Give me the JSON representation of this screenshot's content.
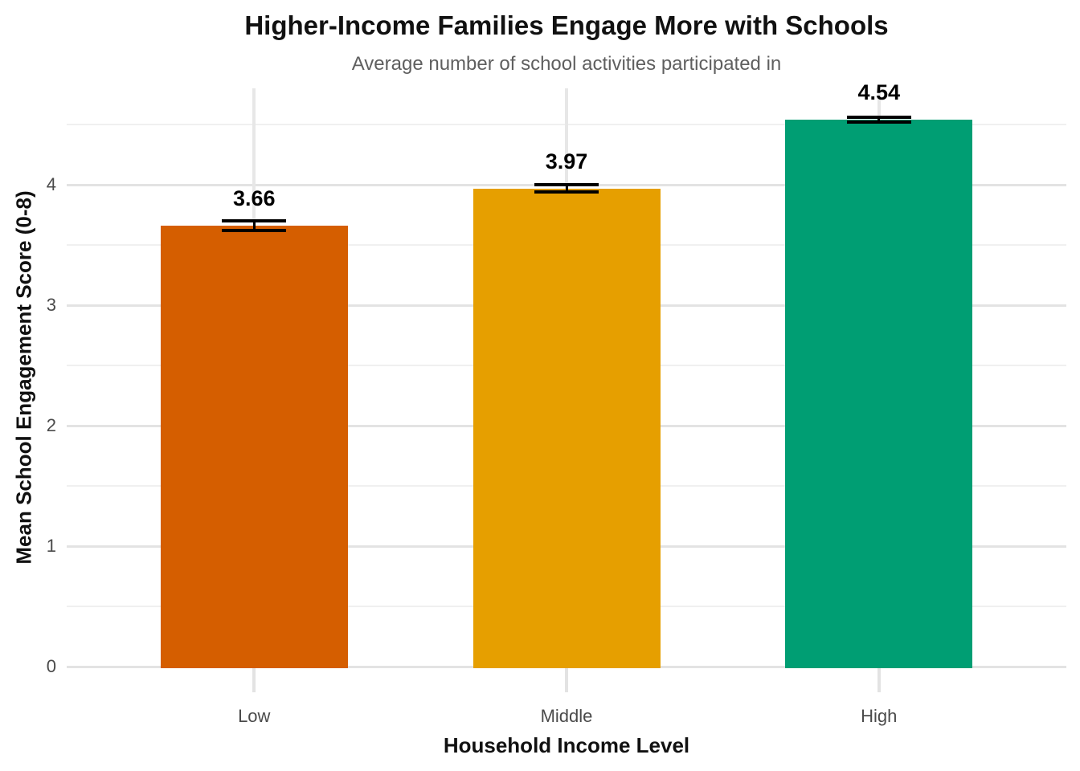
{
  "figure": {
    "title": "Higher-Income Families Engage More with Schools",
    "subtitle": "Average number of school activities participated in"
  },
  "chart_data": {
    "type": "bar",
    "title": "Higher-Income Families Engage More with Schools",
    "subtitle": "Average number of school activities participated in",
    "xlabel": "Household Income Level",
    "ylabel": "Mean School Engagement Score (0-8)",
    "categories": [
      "Low",
      "Middle",
      "High"
    ],
    "values": [
      3.66,
      3.97,
      4.54
    ],
    "value_labels": [
      "3.66",
      "3.97",
      "4.54"
    ],
    "errors": [
      0.04,
      0.03,
      0.02
    ],
    "bar_colors": [
      "#D55E00",
      "#E69F00",
      "#009E73"
    ],
    "y_ticks": [
      0,
      1,
      2,
      3,
      4
    ],
    "y_minor_ticks": [
      0.5,
      1.5,
      2.5,
      3.5,
      4.5
    ],
    "ylim": [
      0,
      4.8
    ],
    "grid": "horizontal major and minor gridlines, vertical gridline at each category",
    "legend": "none",
    "error_bar_style": "black line with caps"
  },
  "colors": {
    "background": "#ffffff",
    "major_grid": "#e3e3e3",
    "minor_grid": "#f0f0f0",
    "vertical_grid": "#e7e7e7",
    "zero_line": "#e3e3e3",
    "x_tick_mark": "#e3e3e3",
    "tick_label": "#4a4a4a",
    "subtitle_text": "#5f5f5f",
    "title_text": "#111111",
    "error_bar": "#000000"
  }
}
